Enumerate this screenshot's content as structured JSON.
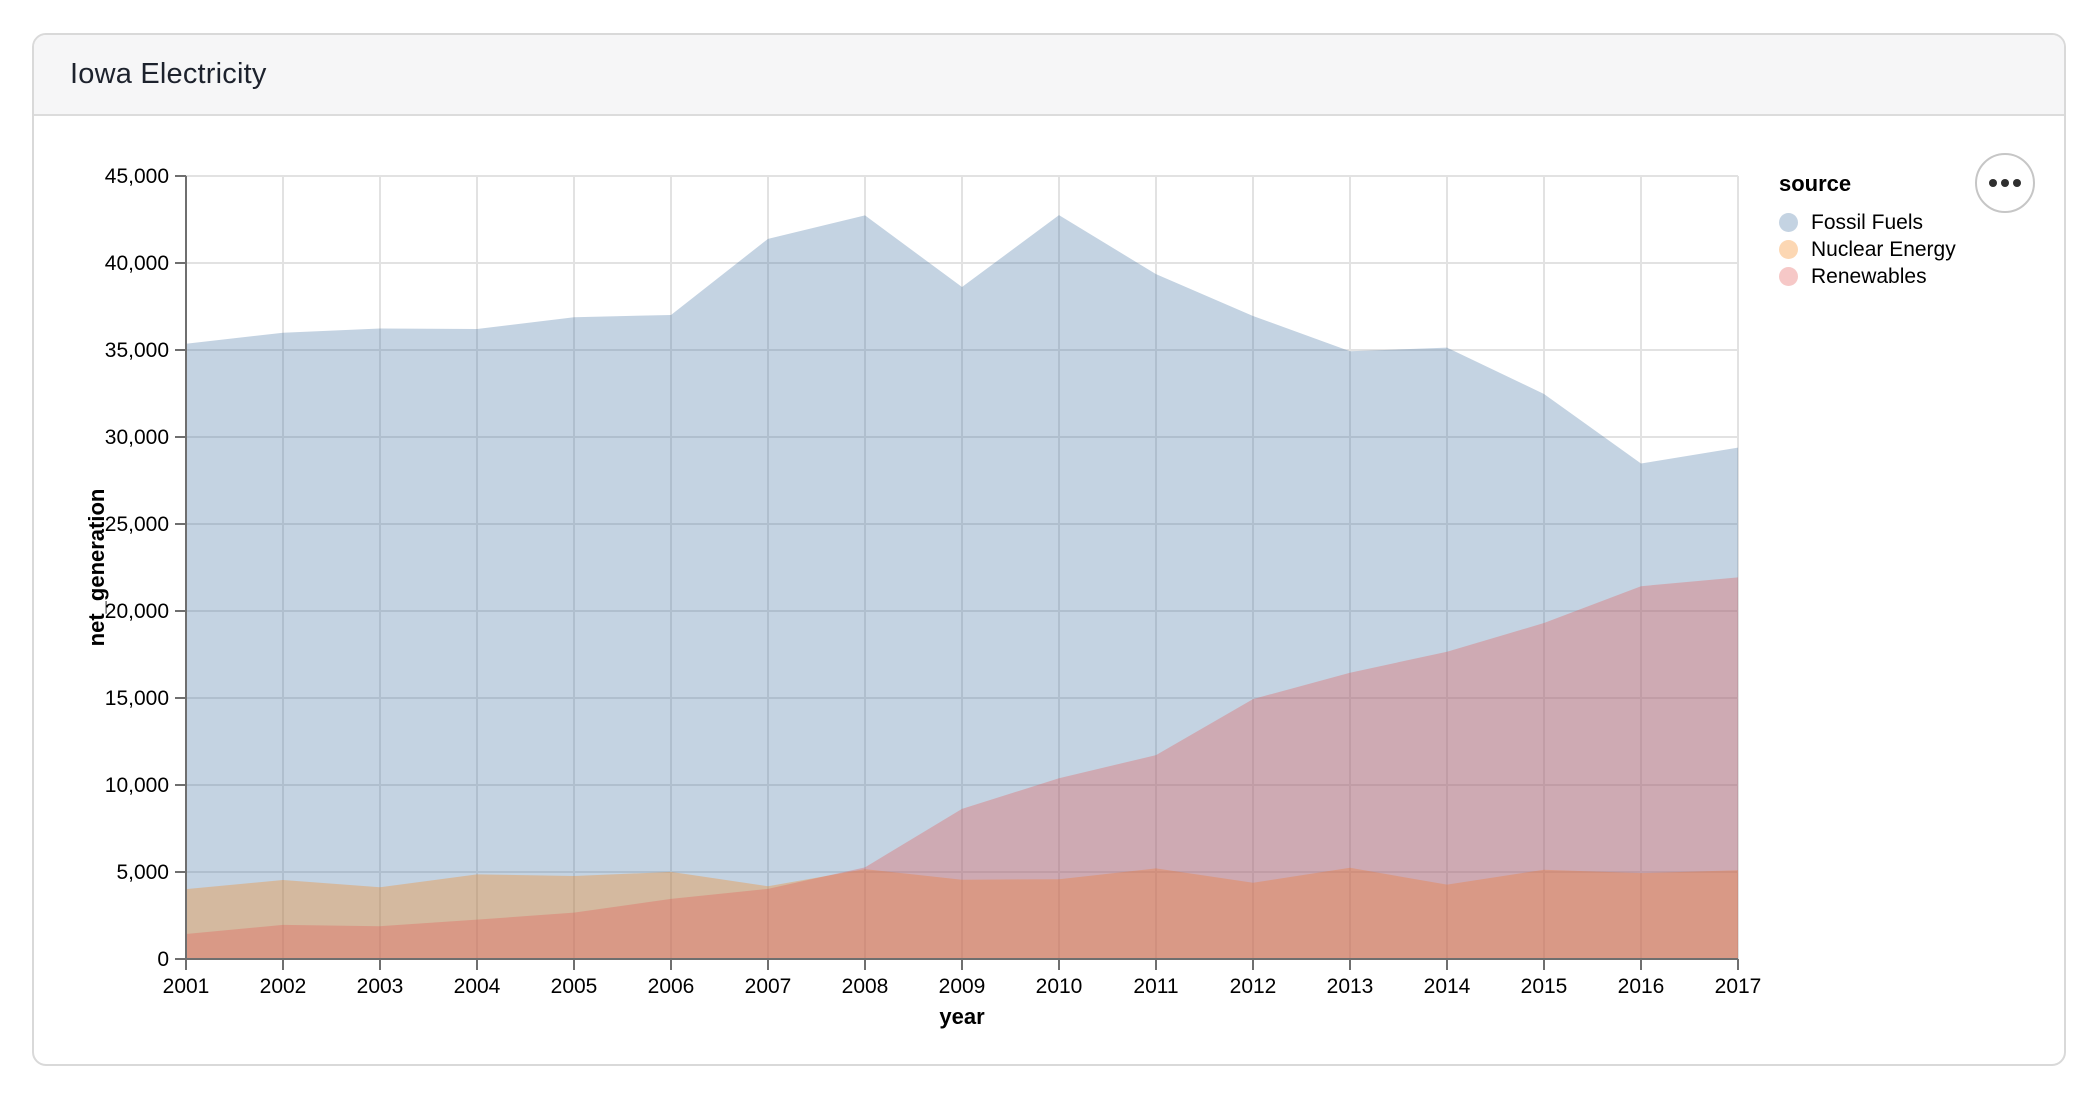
{
  "header": {
    "title": "Iowa Electricity"
  },
  "actions": {
    "button_icon": "ellipsis-icon"
  },
  "chart_data": {
    "type": "area",
    "variant": "layered",
    "title": "",
    "xlabel": "year",
    "ylabel": "net_generation",
    "x": [
      2001,
      2002,
      2003,
      2004,
      2005,
      2006,
      2007,
      2008,
      2009,
      2010,
      2011,
      2012,
      2013,
      2014,
      2015,
      2016,
      2017
    ],
    "ylim": [
      0,
      45000
    ],
    "ytick_step": 5000,
    "grid": true,
    "legend_title": "source",
    "legend_position": "right",
    "mark_opacity": 0.33,
    "axis_colors": {
      "grid": "#e2e2e2",
      "domain": "#6f6f6f",
      "tick": "#6f6f6f",
      "label": "#000000"
    },
    "series": [
      {
        "name": "Fossil Fuels",
        "color": "#4c78a8",
        "values": [
          35361,
          35991,
          36234,
          36205,
          36883,
          37014,
          41389,
          42734,
          38620,
          42750,
          39361,
          36956,
          34927,
          35137,
          32473,
          28477,
          29390
        ]
      },
      {
        "name": "Nuclear Energy",
        "color": "#f58518",
        "values": [
          4017,
          4542,
          4120,
          4864,
          4768,
          5005,
          4182,
          5167,
          4557,
          4585,
          5209,
          4384,
          5244,
          4273,
          5131,
          4934,
          5097
        ]
      },
      {
        "name": "Renewables",
        "color": "#e45756",
        "values": [
          1437,
          1963,
          1885,
          2264,
          2662,
          3454,
          4029,
          5266,
          8627,
          10386,
          11719,
          14938,
          16453,
          17659,
          19307,
          21424,
          21933
        ]
      }
    ]
  }
}
